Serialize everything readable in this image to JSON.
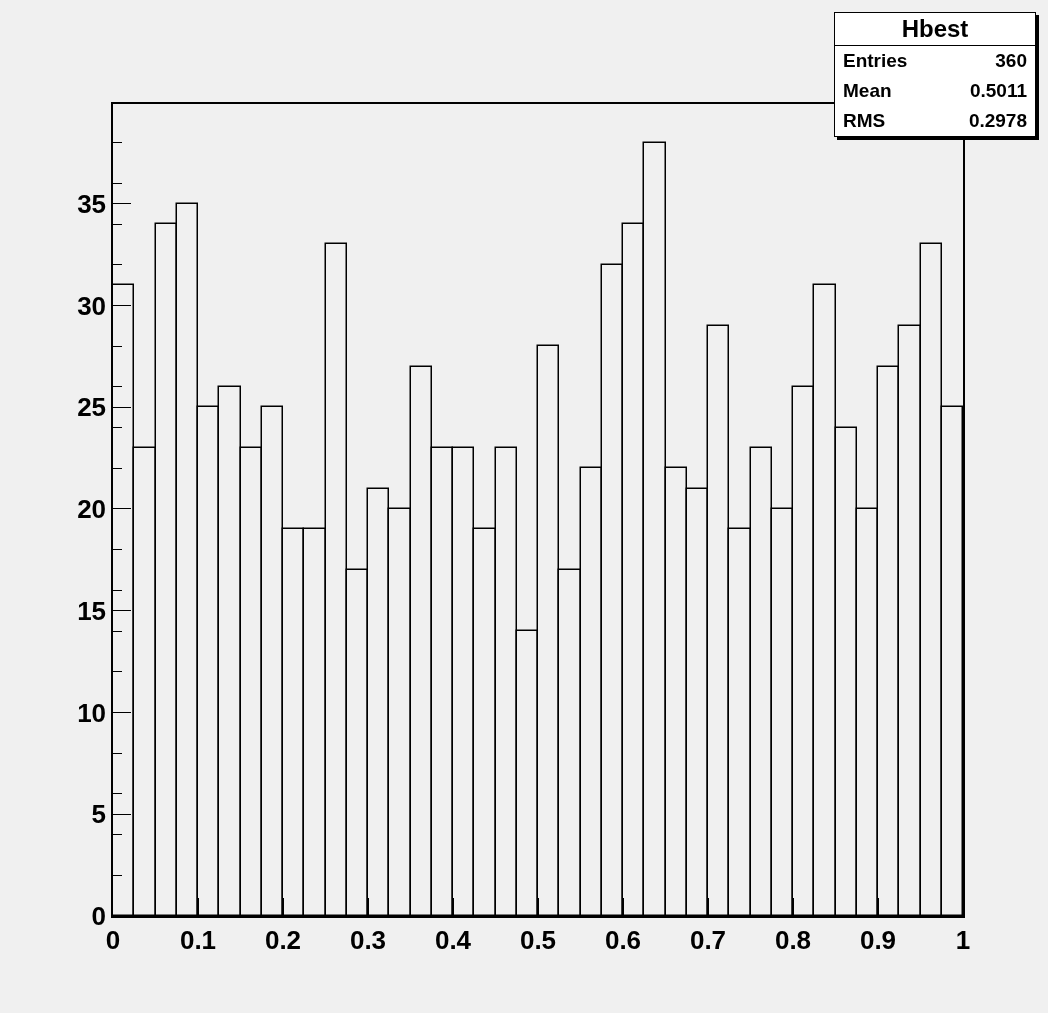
{
  "chart_data": {
    "type": "histogram",
    "title": "Hbest",
    "bins": [
      0,
      0.025,
      0.05,
      0.075,
      0.1,
      0.125,
      0.15,
      0.175,
      0.2,
      0.225,
      0.25,
      0.275,
      0.3,
      0.325,
      0.35,
      0.375,
      0.4,
      0.425,
      0.45,
      0.475,
      0.5,
      0.525,
      0.55,
      0.575,
      0.6,
      0.625,
      0.65,
      0.675,
      0.7,
      0.725,
      0.75,
      0.775,
      0.8,
      0.825,
      0.85,
      0.875,
      0.9,
      0.925,
      0.95,
      0.975,
      1
    ],
    "values": [
      31,
      23,
      34,
      35,
      25,
      26,
      23,
      25,
      19,
      19,
      33,
      17,
      21,
      20,
      27,
      23,
      23,
      19,
      23,
      14,
      28,
      17,
      22,
      32,
      34,
      38,
      22,
      21,
      29,
      19,
      23,
      20,
      26,
      31,
      24,
      20,
      27,
      29,
      33,
      25
    ],
    "color": "#000000",
    "xlim": [
      0,
      1
    ],
    "ylim": [
      0,
      39.9
    ],
    "xticks": [
      0,
      0.1,
      0.2,
      0.3,
      0.4,
      0.5,
      0.6,
      0.7,
      0.8,
      0.9,
      1
    ],
    "yticks": [
      0,
      5,
      10,
      15,
      20,
      25,
      30,
      35
    ],
    "grid": false,
    "legend": false,
    "annotations": [
      "Entries 360",
      "Mean 0.5011",
      "RMS 0.2978"
    ]
  }
}
